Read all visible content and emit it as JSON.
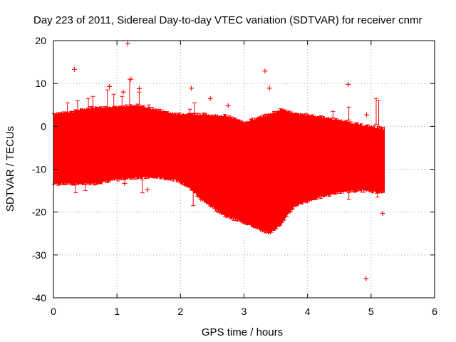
{
  "chart_data": {
    "type": "scatter",
    "title": "Day 223 of 2011, Sidereal Day-to-day VTEC variation (SDTVAR) for receiver cnmr",
    "xlabel": "GPS time / hours",
    "ylabel": "SDTVAR / TECUs",
    "xlim": [
      0,
      6
    ],
    "ylim": [
      -40,
      20
    ],
    "xticks": [
      "0",
      "1",
      "2",
      "3",
      "4",
      "5",
      "6"
    ],
    "yticks": [
      "-40",
      "-30",
      "-20",
      "-10",
      "0",
      "10",
      "20"
    ],
    "grid": true,
    "series_color": "#ff0000",
    "envelope": {
      "x": [
        0.0,
        0.3,
        0.6,
        1.0,
        1.3,
        1.6,
        1.9,
        2.1,
        2.4,
        2.7,
        3.0,
        3.2,
        3.4,
        3.6,
        3.8,
        4.1,
        4.5,
        4.8,
        5.2
      ],
      "upper": [
        3.0,
        3.5,
        4.5,
        4.5,
        5.0,
        4.0,
        3.0,
        3.0,
        2.8,
        2.5,
        1.0,
        2.0,
        3.0,
        4.0,
        3.0,
        2.5,
        1.5,
        0.5,
        -0.5
      ],
      "lower": [
        -13.5,
        -13.5,
        -13.5,
        -12.5,
        -12.0,
        -12.0,
        -12.5,
        -14.0,
        -18.0,
        -21.0,
        -22.5,
        -24.0,
        -25.0,
        -22.5,
        -18.5,
        -17.0,
        -15.5,
        -15.0,
        -15.5
      ]
    },
    "spikes": [
      {
        "x": 0.22,
        "lo": 3.0,
        "hi": 5.5
      },
      {
        "x": 0.38,
        "lo": 3.5,
        "hi": 6.0
      },
      {
        "x": 0.55,
        "lo": 4.0,
        "hi": 6.5
      },
      {
        "x": 0.62,
        "lo": 4.0,
        "hi": 7.0
      },
      {
        "x": 0.85,
        "lo": 4.5,
        "hi": 8.5
      },
      {
        "x": 0.95,
        "lo": 4.5,
        "hi": 7.5
      },
      {
        "x": 1.08,
        "lo": 4.5,
        "hi": 7.0
      },
      {
        "x": 1.2,
        "lo": 5.0,
        "hi": 11.0
      },
      {
        "x": 1.35,
        "lo": 5.0,
        "hi": 8.0
      },
      {
        "x": 1.5,
        "lo": 4.0,
        "hi": 5.0
      },
      {
        "x": 2.15,
        "lo": 3.0,
        "hi": 4.0
      },
      {
        "x": 2.22,
        "lo": 3.0,
        "hi": 5.5
      },
      {
        "x": 4.4,
        "lo": 2.0,
        "hi": 3.5
      },
      {
        "x": 4.65,
        "lo": 1.5,
        "hi": 4.5
      },
      {
        "x": 5.08,
        "lo": 0.5,
        "hi": 6.5
      },
      {
        "x": 5.12,
        "lo": 0.0,
        "hi": 6.0
      },
      {
        "x": 0.35,
        "lo": -15.5,
        "hi": -13.5
      },
      {
        "x": 0.5,
        "lo": -15.0,
        "hi": -13.5
      },
      {
        "x": 1.4,
        "lo": -15.5,
        "hi": -12.5
      },
      {
        "x": 2.2,
        "lo": -18.5,
        "hi": -14.0
      },
      {
        "x": 4.65,
        "lo": -17.0,
        "hi": -15.5
      },
      {
        "x": 5.1,
        "lo": -16.5,
        "hi": -15.0
      }
    ],
    "outliers": [
      {
        "x": 0.33,
        "y": 13.3
      },
      {
        "x": 1.17,
        "y": 19.3
      },
      {
        "x": 1.22,
        "y": 11.0
      },
      {
        "x": 1.1,
        "y": 8.0
      },
      {
        "x": 0.88,
        "y": 9.3
      },
      {
        "x": 1.35,
        "y": 8.8
      },
      {
        "x": 2.17,
        "y": 8.9
      },
      {
        "x": 2.47,
        "y": 6.5
      },
      {
        "x": 2.75,
        "y": 4.8
      },
      {
        "x": 3.33,
        "y": 12.9
      },
      {
        "x": 3.4,
        "y": 8.9
      },
      {
        "x": 4.64,
        "y": 9.8
      },
      {
        "x": 4.93,
        "y": 2.7
      },
      {
        "x": 1.12,
        "y": -13.3
      },
      {
        "x": 1.48,
        "y": -14.8
      },
      {
        "x": 2.32,
        "y": -17.0
      },
      {
        "x": 5.18,
        "y": -20.3
      },
      {
        "x": 4.92,
        "y": -35.5
      }
    ]
  }
}
